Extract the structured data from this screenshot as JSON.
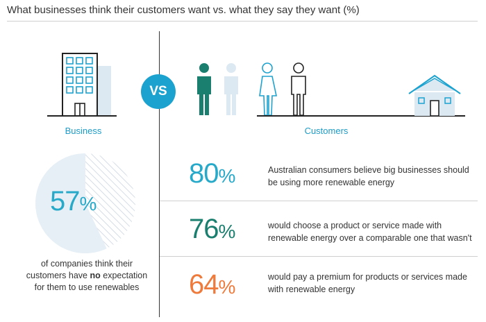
{
  "title": "What businesses think their customers want vs. what they say they want (%)",
  "vs_label": "VS",
  "business": {
    "label": "Business",
    "stat_number": "57",
    "stat_unit": "%",
    "stat_fraction": 0.57,
    "caption_part1": "of companies think their customers have ",
    "caption_bold": "no",
    "caption_part2": " expectation for them to use renewables"
  },
  "customers": {
    "label": "Customers",
    "stats": [
      {
        "number": "80",
        "unit": "%",
        "text": "Australian consumers believe big businesses should be using more renewable energy",
        "color": "#27a9c9"
      },
      {
        "number": "76",
        "unit": "%",
        "text": "would choose a product or service made with renewable energy over a comparable one that wasn't",
        "color": "#1b7f6f"
      },
      {
        "number": "64",
        "unit": "%",
        "text": "would pay a premium for products or services made with renewable energy",
        "color": "#ee7a3b"
      }
    ]
  },
  "colors": {
    "accent_blue": "#1ca2cf",
    "pie_light": "#e6eff6",
    "pie_hatch": "#d9dfe6",
    "dark_teal": "#1b7f6f",
    "light_figure": "#dde9f2"
  },
  "icons": [
    "office-building-icon",
    "person-filled-icon",
    "person-outline-icon",
    "house-icon"
  ]
}
